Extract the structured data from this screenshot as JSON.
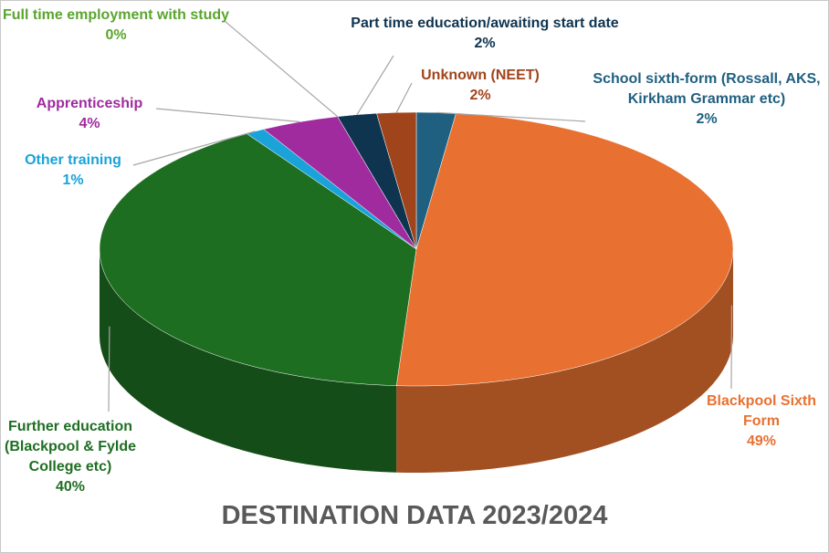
{
  "chart_data": {
    "type": "pie3d",
    "title": "DESTINATION DATA 2023/2024",
    "categories": [
      "School sixth-form (Rossall, AKS, Kirkham Grammar etc)",
      "Blackpool Sixth Form",
      "Further education (Blackpool & Fylde College etc)",
      "Other training",
      "Apprenticeship",
      "Full time employment with study",
      "Part time education/awaiting start date",
      "Unknown (NEET)"
    ],
    "values": [
      2,
      49,
      40,
      1,
      4,
      0,
      2,
      2
    ],
    "value_labels": [
      "2%",
      "49%",
      "40%",
      "1%",
      "4%",
      "0%",
      "2%",
      "2%"
    ],
    "colors": [
      "#1f5f80",
      "#e87131",
      "#1e6e22",
      "#1aa3d9",
      "#a02b9f",
      "#5aa52e",
      "#0f3450",
      "#a0441b"
    ]
  }
}
